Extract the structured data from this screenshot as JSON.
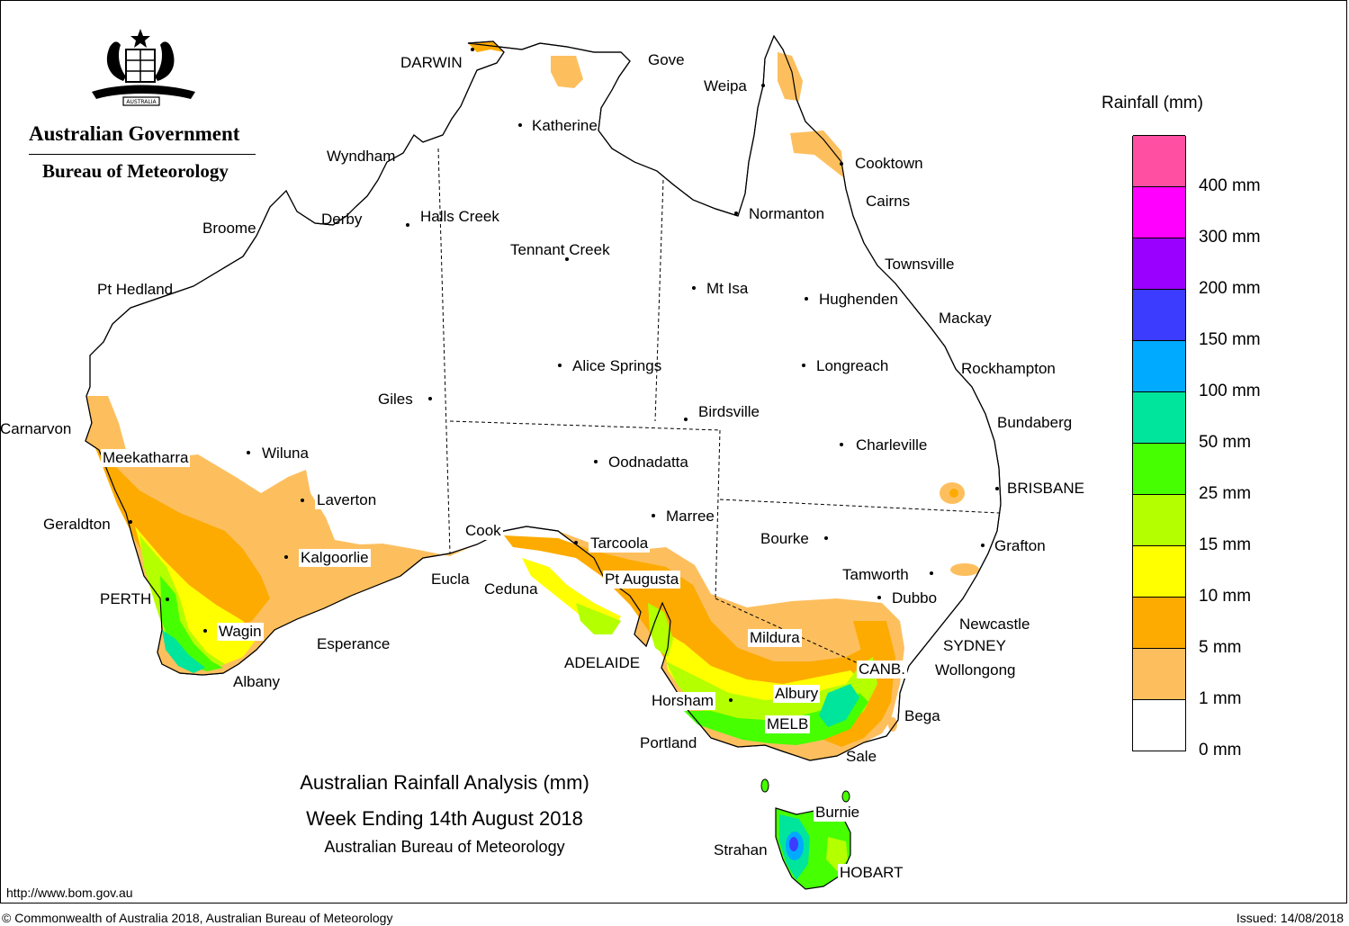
{
  "header": {
    "org_name": "Australian Government",
    "agency": "Bureau of Meteorology",
    "crest_motto": "AUSTRALIA"
  },
  "caption": {
    "title": "Australian Rainfall Analysis (mm)",
    "subtitle": "Week Ending 14th August 2018",
    "source": "Australian Bureau of Meteorology"
  },
  "legend": {
    "title": "Rainfall (mm)",
    "bands": [
      {
        "label": "0 mm",
        "color": "#ffffff"
      },
      {
        "label": "1 mm",
        "color": "#fdbf5e"
      },
      {
        "label": "5 mm",
        "color": "#fdab00"
      },
      {
        "label": "10 mm",
        "color": "#ffff00"
      },
      {
        "label": "15 mm",
        "color": "#b4ff00"
      },
      {
        "label": "25 mm",
        "color": "#46ff00"
      },
      {
        "label": "50 mm",
        "color": "#00e59c"
      },
      {
        "label": "100 mm",
        "color": "#00aaff"
      },
      {
        "label": "150 mm",
        "color": "#3c3cff"
      },
      {
        "label": "200 mm",
        "color": "#9a00ff"
      },
      {
        "label": "300 mm",
        "color": "#ff00ff"
      },
      {
        "label": "400 mm",
        "color": "#ff4fa3"
      }
    ]
  },
  "places": [
    {
      "name": "DARWIN"
    },
    {
      "name": "Gove"
    },
    {
      "name": "Weipa"
    },
    {
      "name": "Katherine"
    },
    {
      "name": "Wyndham"
    },
    {
      "name": "Cooktown"
    },
    {
      "name": "Cairns"
    },
    {
      "name": "Derby"
    },
    {
      "name": "Halls Creek"
    },
    {
      "name": "Normanton"
    },
    {
      "name": "Broome"
    },
    {
      "name": "Tennant Creek"
    },
    {
      "name": "Townsville"
    },
    {
      "name": "Pt Hedland"
    },
    {
      "name": "Mt Isa"
    },
    {
      "name": "Hughenden"
    },
    {
      "name": "Mackay"
    },
    {
      "name": "Alice Springs"
    },
    {
      "name": "Longreach"
    },
    {
      "name": "Rockhampton"
    },
    {
      "name": "Giles"
    },
    {
      "name": "Birdsville"
    },
    {
      "name": "Bundaberg"
    },
    {
      "name": "Carnarvon"
    },
    {
      "name": "Wiluna"
    },
    {
      "name": "Charleville"
    },
    {
      "name": "Meekatharra"
    },
    {
      "name": "Oodnadatta"
    },
    {
      "name": "BRISBANE"
    },
    {
      "name": "Laverton"
    },
    {
      "name": "Marree"
    },
    {
      "name": "Geraldton"
    },
    {
      "name": "Cook"
    },
    {
      "name": "Bourke"
    },
    {
      "name": "Tarcoola"
    },
    {
      "name": "Grafton"
    },
    {
      "name": "Kalgoorlie"
    },
    {
      "name": "Tamworth"
    },
    {
      "name": "Pt Augusta"
    },
    {
      "name": "Eucla"
    },
    {
      "name": "Ceduna"
    },
    {
      "name": "PERTH"
    },
    {
      "name": "Dubbo"
    },
    {
      "name": "Newcastle"
    },
    {
      "name": "Wagin"
    },
    {
      "name": "Mildura"
    },
    {
      "name": "SYDNEY"
    },
    {
      "name": "Esperance"
    },
    {
      "name": "ADELAIDE"
    },
    {
      "name": "CANB."
    },
    {
      "name": "Wollongong"
    },
    {
      "name": "Albany"
    },
    {
      "name": "Albury"
    },
    {
      "name": "Horsham"
    },
    {
      "name": "Bega"
    },
    {
      "name": "MELB"
    },
    {
      "name": "Portland"
    },
    {
      "name": "Sale"
    },
    {
      "name": "Burnie"
    },
    {
      "name": "Strahan"
    },
    {
      "name": "HOBART"
    }
  ],
  "footer": {
    "url": "http://www.bom.gov.au",
    "copyright": "© Commonwealth of Australia 2018, Australian Bureau of Meteorology",
    "issued": "Issued: 14/08/2018"
  }
}
